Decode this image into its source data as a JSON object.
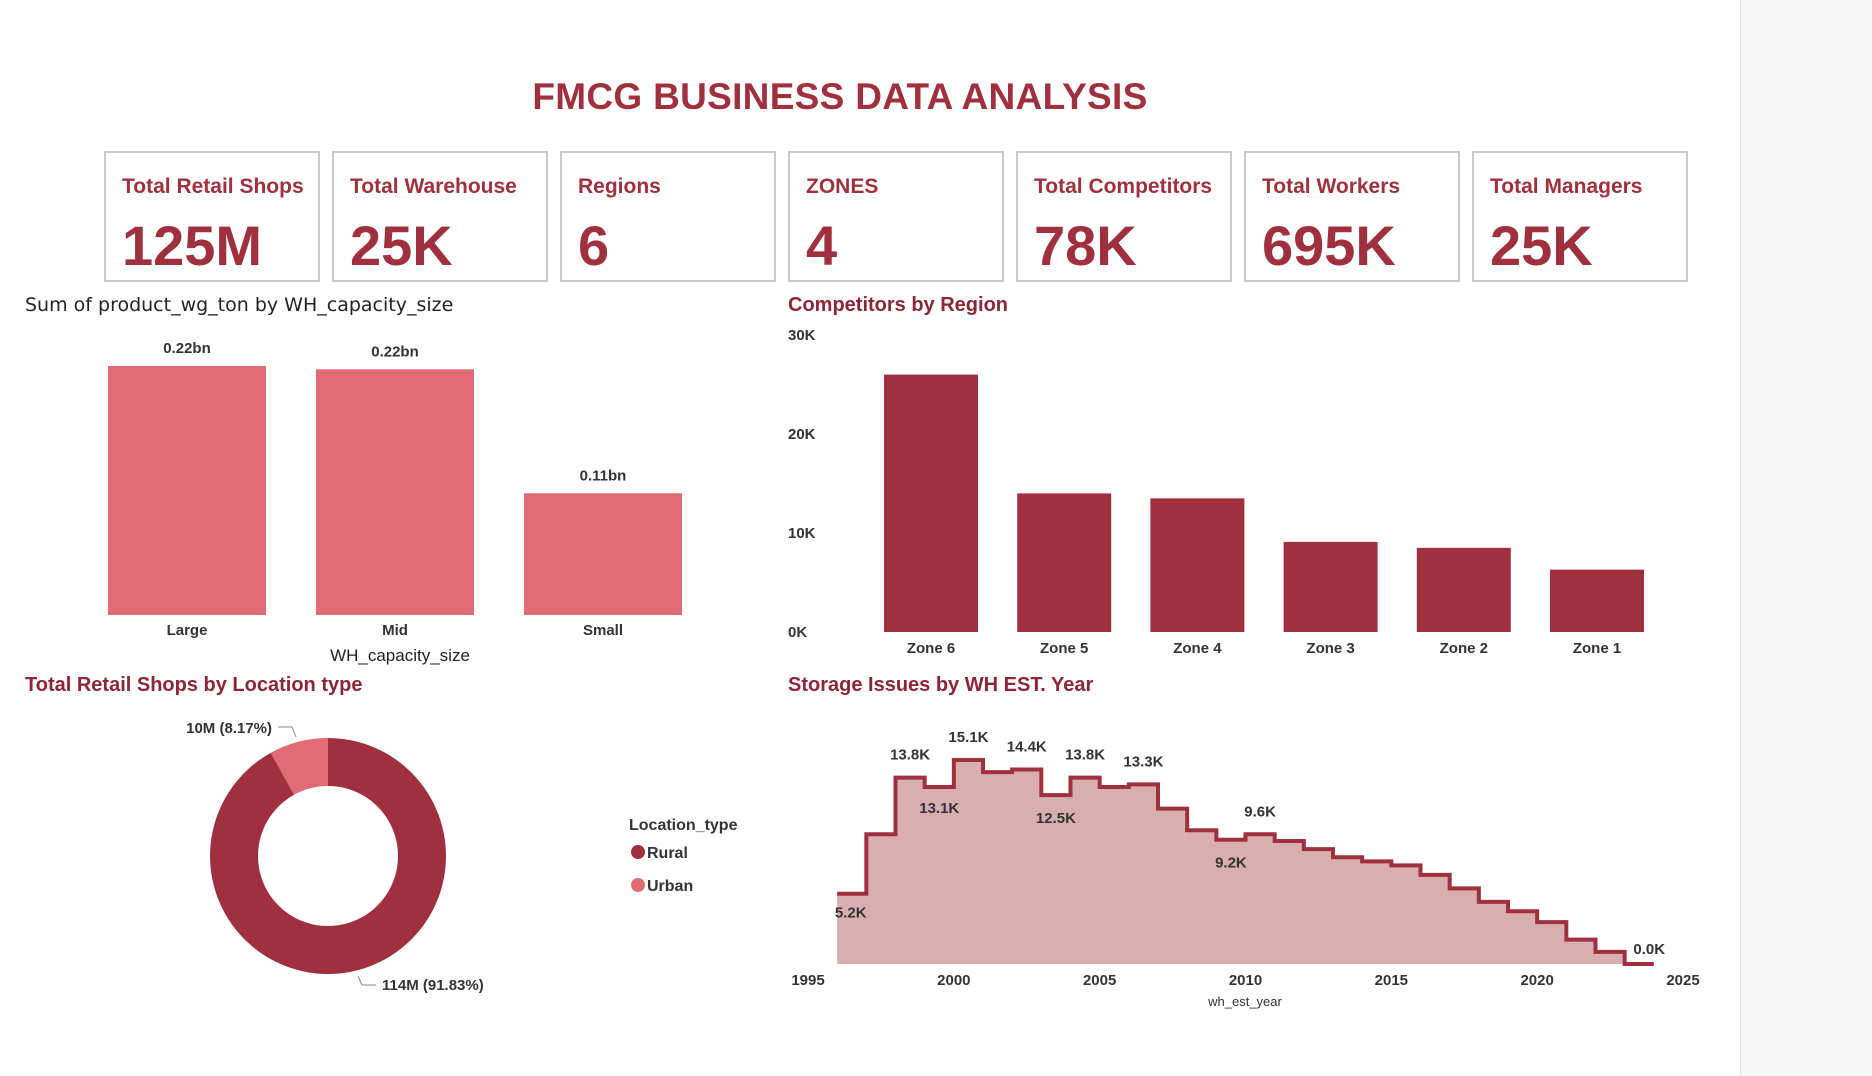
{
  "header": {
    "title": "FMCG BUSINESS DATA ANALYSIS"
  },
  "kpis": [
    {
      "label": "Total Retail Shops",
      "value": "125M"
    },
    {
      "label": "Total Warehouse",
      "value": "25K"
    },
    {
      "label": "Regions",
      "value": "6"
    },
    {
      "label": "ZONES",
      "value": "4"
    },
    {
      "label": "Total Competitors",
      "value": "78K"
    },
    {
      "label": "Total Workers",
      "value": "695K"
    },
    {
      "label": "Total Managers",
      "value": "25K"
    }
  ],
  "colors": {
    "accent": "#a0303d",
    "light": "#e06b74",
    "area_fill": "#d8aeb1",
    "line": "#a0303d"
  },
  "chart_data": [
    {
      "type": "bar",
      "title": "Sum of product_wg_ton by WH_capacity_size",
      "xlabel": "WH_capacity_size",
      "ylabel": "",
      "categories": [
        "Large",
        "Mid",
        "Small"
      ],
      "values": [
        0.225,
        0.222,
        0.11
      ],
      "data_labels": [
        "0.22bn",
        "0.22bn",
        "0.11bn"
      ],
      "ylim": [
        0,
        0.225
      ]
    },
    {
      "type": "bar",
      "title": "Competitors by Region",
      "categories": [
        "Zone 6",
        "Zone 5",
        "Zone 4",
        "Zone 3",
        "Zone 2",
        "Zone 1"
      ],
      "values": [
        26000,
        14000,
        13500,
        9100,
        8500,
        6300
      ],
      "yticks": [
        "0K",
        "10K",
        "20K",
        "30K"
      ],
      "ylim": [
        0,
        30000
      ],
      "grid": false
    },
    {
      "type": "pie",
      "title": "Total Retail Shops by Location type",
      "legend_title": "Location_type",
      "labels": [
        "Rural",
        "Urban"
      ],
      "values": [
        114,
        10
      ],
      "data_labels": [
        "114M (91.83%)",
        "10M (8.17%)"
      ],
      "legend_position": "right"
    },
    {
      "type": "area",
      "title": "Storage Issues by WH EST. Year",
      "xlabel": "wh_est_year",
      "x": [
        1996,
        1997,
        1998,
        1999,
        2000,
        2001,
        2002,
        2003,
        2004,
        2005,
        2006,
        2007,
        2008,
        2009,
        2010,
        2011,
        2012,
        2013,
        2014,
        2015,
        2016,
        2017,
        2018,
        2019,
        2020,
        2021,
        2022,
        2023
      ],
      "values": [
        5.2,
        9.6,
        13.8,
        13.1,
        15.1,
        14.2,
        14.4,
        12.5,
        13.8,
        13.1,
        13.3,
        11.5,
        9.9,
        9.2,
        9.6,
        9.1,
        8.5,
        7.9,
        7.6,
        7.3,
        6.6,
        5.6,
        4.6,
        3.9,
        3.1,
        1.8,
        0.9,
        0.0
      ],
      "data_labels": [
        {
          "x": 1996,
          "label": "5.2K"
        },
        {
          "x": 1998,
          "label": "13.8K"
        },
        {
          "x": 1999,
          "label": "13.1K"
        },
        {
          "x": 2000,
          "label": "15.1K"
        },
        {
          "x": 2002,
          "label": "14.4K"
        },
        {
          "x": 2003,
          "label": "12.5K"
        },
        {
          "x": 2004,
          "label": "13.8K"
        },
        {
          "x": 2006,
          "label": "13.3K"
        },
        {
          "x": 2009,
          "label": "9.2K"
        },
        {
          "x": 2010,
          "label": "9.6K"
        },
        {
          "x": 2023,
          "label": "0.0K"
        }
      ],
      "xticks": [
        "1995",
        "2000",
        "2005",
        "2010",
        "2015",
        "2020",
        "2025"
      ],
      "xlim": [
        1995,
        2025
      ],
      "ylim": [
        0,
        16.5
      ],
      "step": true
    }
  ]
}
